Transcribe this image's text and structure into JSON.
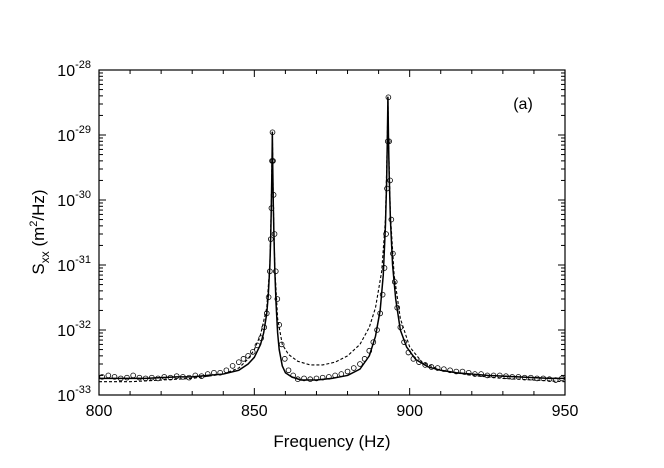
{
  "chart_data": {
    "type": "line",
    "panel_label": "(a)",
    "xlabel": "Frequency (Hz)",
    "ylabel": {
      "base": "S",
      "subscript": "xx",
      "units_prefix": " (m",
      "units_sup": "2",
      "units_suffix": "/Hz)"
    },
    "xlim": [
      800,
      950
    ],
    "ylim": [
      1e-33,
      1e-28
    ],
    "y_scale": "log",
    "x_ticks": [
      800,
      850,
      900,
      950
    ],
    "x_tick_labels": [
      "800",
      "850",
      "900",
      "950"
    ],
    "y_ticks": [
      {
        "value": 1e-28,
        "base": "10",
        "exp": "-28"
      },
      {
        "value": 1e-29,
        "base": "10",
        "exp": "-29"
      },
      {
        "value": 1e-30,
        "base": "10",
        "exp": "-30"
      },
      {
        "value": 1e-31,
        "base": "10",
        "exp": "-31"
      },
      {
        "value": 1e-32,
        "base": "10",
        "exp": "-32"
      },
      {
        "value": 1e-33,
        "base": "10",
        "exp": "-33"
      }
    ],
    "grid": false,
    "legend": "none",
    "model": {
      "background": 1.7e-33,
      "peaks": [
        {
          "f0": 855.8,
          "amplitude": 1.1e-29,
          "hwhm": 0.35
        },
        {
          "f0": 893.0,
          "amplitude": 3.8e-29,
          "hwhm": 0.45
        }
      ]
    },
    "series": [
      {
        "style": "solid-line",
        "x": [
          800,
          805,
          810,
          815,
          820,
          825,
          830,
          835,
          840,
          845,
          848,
          850,
          852,
          853,
          854,
          854.5,
          855,
          855.3,
          855.5,
          855.7,
          855.8,
          855.9,
          856.1,
          856.3,
          856.6,
          857,
          857.5,
          858,
          859,
          860,
          862,
          865,
          870,
          875,
          880,
          884,
          887,
          889,
          890.5,
          891.5,
          892.2,
          892.6,
          892.8,
          893.0,
          893.2,
          893.4,
          893.8,
          894.5,
          895.5,
          897,
          899,
          902,
          906,
          910,
          915,
          920,
          925,
          930,
          935,
          940,
          945,
          950
        ],
        "y": [
          1.8e-33,
          1.8e-33,
          1.8e-33,
          1.8e-33,
          1.85e-33,
          1.9e-33,
          1.9e-33,
          2e-33,
          2.1e-33,
          2.4e-33,
          3e-33,
          3.8e-33,
          6e-33,
          9e-33,
          1.8e-32,
          3.5e-32,
          1e-31,
          3e-31,
          1e-30,
          4e-30,
          1.1e-29,
          4e-30,
          9e-31,
          3e-31,
          8e-32,
          2.5e-32,
          9e-33,
          5e-33,
          2.8e-33,
          2.2e-33,
          1.9e-33,
          1.7e-33,
          1.7e-33,
          1.8e-33,
          2e-33,
          2.5e-33,
          4e-33,
          8e-33,
          2e-32,
          7e-32,
          4e-31,
          2e-30,
          8e-30,
          3.8e-29,
          8e-30,
          2.5e-30,
          5e-31,
          1e-31,
          3e-32,
          1e-32,
          5.5e-33,
          3.5e-33,
          2.7e-33,
          2.4e-33,
          2.2e-33,
          2.1e-33,
          2e-33,
          1.95e-33,
          1.9e-33,
          1.85e-33,
          1.8e-33,
          1.8e-33
        ]
      },
      {
        "style": "dashed-line",
        "x": [
          800,
          810,
          820,
          830,
          840,
          845,
          848,
          850,
          852,
          854,
          855,
          855.5,
          855.8,
          856.1,
          856.6,
          857.5,
          859,
          861,
          864,
          868,
          872,
          876,
          880,
          884,
          887,
          889,
          891,
          892.2,
          892.8,
          893.0,
          893.2,
          893.8,
          895,
          897,
          900,
          904,
          910,
          920,
          930,
          940,
          950
        ],
        "y": [
          1.6e-33,
          1.6e-33,
          1.7e-33,
          1.8e-33,
          2.1e-33,
          2.6e-33,
          3.6e-33,
          5e-33,
          8.5e-33,
          2.2e-32,
          1e-31,
          1e-30,
          1.1e-29,
          9e-31,
          9e-32,
          1.5e-32,
          6e-33,
          4.2e-33,
          3.3e-33,
          2.9e-33,
          2.9e-33,
          3.2e-33,
          4e-33,
          6e-33,
          1.1e-32,
          2.2e-32,
          8e-32,
          5e-31,
          8e-30,
          3.8e-29,
          8e-30,
          6e-31,
          7e-32,
          1.5e-32,
          5.5e-33,
          3.2e-33,
          2.4e-33,
          2e-33,
          1.8e-33,
          1.7e-33,
          1.6e-33
        ]
      },
      {
        "style": "open-circles",
        "x": [
          801,
          803,
          805,
          807,
          809,
          811,
          813,
          815,
          817,
          819,
          821,
          823,
          825,
          827,
          829,
          831,
          833,
          835,
          837,
          839,
          841,
          843,
          845,
          846.5,
          848,
          849.5,
          851,
          852.2,
          853.2,
          854,
          854.6,
          855.0,
          855.3,
          855.5,
          855.7,
          855.85,
          856.0,
          856.2,
          856.5,
          856.9,
          857.4,
          858,
          858.8,
          859.8,
          861,
          862.5,
          864,
          866,
          868,
          870,
          872,
          874,
          876,
          878,
          880,
          882,
          884,
          885.5,
          887,
          888.3,
          889.5,
          890.5,
          891.3,
          891.9,
          892.4,
          892.7,
          892.95,
          893.15,
          893.4,
          893.7,
          894.1,
          894.6,
          895.2,
          896,
          897,
          898.2,
          899.6,
          901.2,
          903,
          905,
          907,
          909,
          911,
          913,
          915,
          917,
          919,
          921,
          923,
          925,
          927,
          929,
          931,
          933,
          935,
          937,
          939,
          941,
          943,
          945,
          947,
          949
        ],
        "y": [
          1.9e-33,
          2e-33,
          1.9e-33,
          1.8e-33,
          1.85e-33,
          2e-33,
          1.85e-33,
          1.8e-33,
          1.85e-33,
          1.8e-33,
          1.9e-33,
          1.85e-33,
          1.95e-33,
          1.9e-33,
          1.85e-33,
          2e-33,
          1.95e-33,
          2.1e-33,
          2.2e-33,
          2.2e-33,
          2.4e-33,
          2.8e-33,
          3.2e-33,
          3.6e-33,
          4e-33,
          4.6e-33,
          5.8e-33,
          7.5e-33,
          1.1e-32,
          1.8e-32,
          3.2e-32,
          8e-32,
          2.5e-31,
          7.5e-31,
          4e-30,
          1.1e-29,
          4e-30,
          1.2e-30,
          3e-31,
          8e-32,
          3e-32,
          1.2e-32,
          6e-33,
          3.6e-33,
          2.4e-33,
          2e-33,
          1.75e-33,
          1.8e-33,
          1.75e-33,
          1.8e-33,
          1.85e-33,
          1.9e-33,
          2e-33,
          2.1e-33,
          2.3e-33,
          2.6e-33,
          3e-33,
          3.6e-33,
          4.8e-33,
          6.5e-33,
          1e-32,
          1.8e-32,
          3.5e-32,
          9e-32,
          3e-31,
          1.5e-30,
          8e-30,
          3.8e-29,
          8e-30,
          2e-30,
          5e-31,
          1.5e-31,
          5.5e-32,
          2.2e-32,
          1.1e-32,
          6.5e-33,
          4.5e-33,
          3.6e-33,
          3.2e-33,
          2.9e-33,
          2.7e-33,
          2.6e-33,
          2.5e-33,
          2.4e-33,
          2.3e-33,
          2.3e-33,
          2.2e-33,
          2.1e-33,
          2.1e-33,
          2e-33,
          2e-33,
          2e-33,
          1.95e-33,
          1.9e-33,
          1.9e-33,
          1.85e-33,
          1.85e-33,
          1.8e-33,
          1.8e-33,
          1.75e-33,
          1.7e-33,
          1.8e-33
        ]
      }
    ]
  }
}
